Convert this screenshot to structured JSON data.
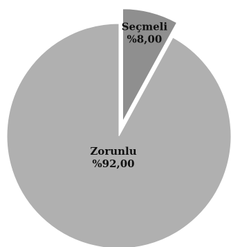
{
  "chart_data": {
    "type": "pie",
    "categories": [
      "Seçmeli",
      "Zorunlu"
    ],
    "values": [
      8.0,
      92.0
    ],
    "value_labels": [
      "%8,00",
      "%92,00"
    ],
    "exploded": [
      "Seçmeli"
    ],
    "colors": {
      "Seçmeli": "#8f8f8f",
      "Zorunlu": "#b0b0b0",
      "edge": "#ffffff"
    },
    "legend": "none",
    "title": ""
  }
}
